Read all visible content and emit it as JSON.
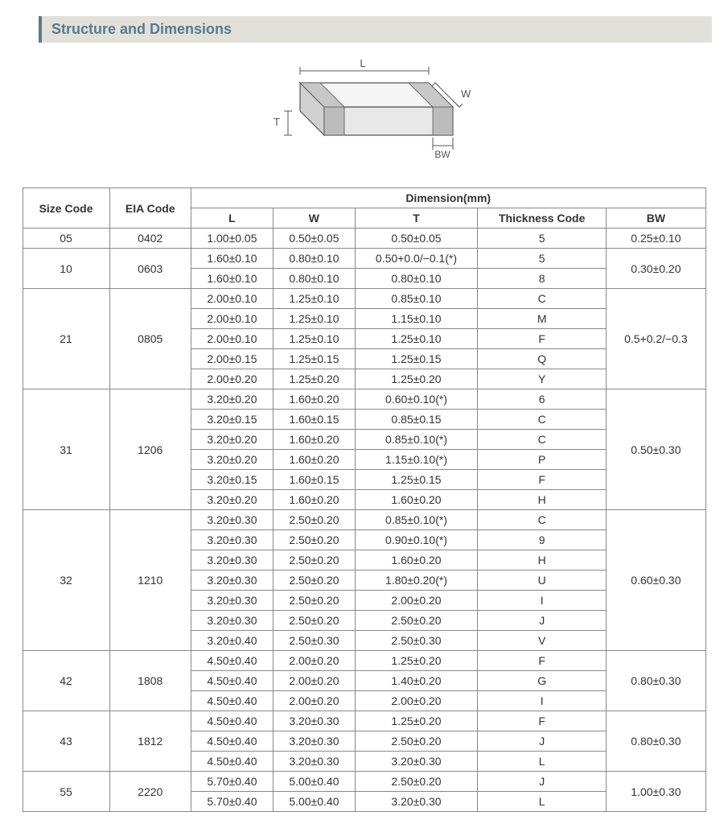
{
  "section_title": "Structure and Dimensions",
  "diagram": {
    "labels": {
      "L": "L",
      "W": "W",
      "T": "T",
      "BW": "BW"
    },
    "stroke": "#555555",
    "fill": "#e0e0e0",
    "text_color": "#555555"
  },
  "table": {
    "headers": {
      "size_code": "Size Code",
      "eia_code": "EIA Code",
      "dimension": "Dimension(mm)",
      "L": "L",
      "W": "W",
      "T": "T",
      "thickness_code": "Thickness  Code",
      "BW": "BW"
    },
    "groups": [
      {
        "size_code": "05",
        "eia_code": "0402",
        "bw": "0.25±0.10",
        "rows": [
          {
            "L": "1.00±0.05",
            "W": "0.50±0.05",
            "T": "0.50±0.05",
            "code": "5"
          }
        ]
      },
      {
        "size_code": "10",
        "eia_code": "0603",
        "bw": "0.30±0.20",
        "rows": [
          {
            "L": "1.60±0.10",
            "W": "0.80±0.10",
            "T": "0.50+0.0/−0.1(*)",
            "code": "5"
          },
          {
            "L": "1.60±0.10",
            "W": "0.80±0.10",
            "T": "0.80±0.10",
            "code": "8"
          }
        ]
      },
      {
        "size_code": "21",
        "eia_code": "0805",
        "bw": "0.5+0.2/−0.3",
        "rows": [
          {
            "L": "2.00±0.10",
            "W": "1.25±0.10",
            "T": "0.85±0.10",
            "code": "C"
          },
          {
            "L": "2.00±0.10",
            "W": "1.25±0.10",
            "T": "1.15±0.10",
            "code": "M"
          },
          {
            "L": "2.00±0.10",
            "W": "1.25±0.10",
            "T": "1.25±0.10",
            "code": "F"
          },
          {
            "L": "2.00±0.15",
            "W": "1.25±0.15",
            "T": "1.25±0.15",
            "code": "Q"
          },
          {
            "L": "2.00±0.20",
            "W": "1.25±0.20",
            "T": "1.25±0.20",
            "code": "Y"
          }
        ]
      },
      {
        "size_code": "31",
        "eia_code": "1206",
        "bw": "0.50±0.30",
        "rows": [
          {
            "L": "3.20±0.20",
            "W": "1.60±0.20",
            "T": "0.60±0.10(*)",
            "code": "6"
          },
          {
            "L": "3.20±0.15",
            "W": "1.60±0.15",
            "T": "0.85±0.15",
            "code": "C"
          },
          {
            "L": "3.20±0.20",
            "W": "1.60±0.20",
            "T": "0.85±0.10(*)",
            "code": "C"
          },
          {
            "L": "3.20±0.20",
            "W": "1.60±0.20",
            "T": "1.15±0.10(*)",
            "code": "P"
          },
          {
            "L": "3.20±0.15",
            "W": "1.60±0.15",
            "T": "1.25±0.15",
            "code": "F"
          },
          {
            "L": "3.20±0.20",
            "W": "1.60±0.20",
            "T": "1.60±0.20",
            "code": "H"
          }
        ]
      },
      {
        "size_code": "32",
        "eia_code": "1210",
        "bw": "0.60±0.30",
        "rows": [
          {
            "L": "3.20±0.30",
            "W": "2.50±0.20",
            "T": "0.85±0.10(*)",
            "code": "C"
          },
          {
            "L": "3.20±0.30",
            "W": "2.50±0.20",
            "T": "0.90±0.10(*)",
            "code": "9"
          },
          {
            "L": "3.20±0.30",
            "W": "2.50±0.20",
            "T": "1.60±0.20",
            "code": "H"
          },
          {
            "L": "3.20±0.30",
            "W": "2.50±0.20",
            "T": "1.80±0.20(*)",
            "code": "U"
          },
          {
            "L": "3.20±0.30",
            "W": "2.50±0.20",
            "T": "2.00±0.20",
            "code": "I"
          },
          {
            "L": "3.20±0.30",
            "W": "2.50±0.20",
            "T": "2.50±0.20",
            "code": "J"
          },
          {
            "L": "3.20±0.40",
            "W": "2.50±0.30",
            "T": "2.50±0.30",
            "code": "V"
          }
        ]
      },
      {
        "size_code": "42",
        "eia_code": "1808",
        "bw": "0.80±0.30",
        "rows": [
          {
            "L": "4.50±0.40",
            "W": "2.00±0.20",
            "T": "1.25±0.20",
            "code": "F"
          },
          {
            "L": "4.50±0.40",
            "W": "2.00±0.20",
            "T": "1.40±0.20",
            "code": "G"
          },
          {
            "L": "4.50±0.40",
            "W": "2.00±0.20",
            "T": "2.00±0.20",
            "code": "I"
          }
        ]
      },
      {
        "size_code": "43",
        "eia_code": "1812",
        "bw": "0.80±0.30",
        "rows": [
          {
            "L": "4.50±0.40",
            "W": "3.20±0.30",
            "T": "1.25±0.20",
            "code": "F"
          },
          {
            "L": "4.50±0.40",
            "W": "3.20±0.30",
            "T": "2.50±0.20",
            "code": "J"
          },
          {
            "L": "4.50±0.40",
            "W": "3.20±0.30",
            "T": "3.20±0.30",
            "code": "L"
          }
        ]
      },
      {
        "size_code": "55",
        "eia_code": "2220",
        "bw": "1.00±0.30",
        "rows": [
          {
            "L": "5.70±0.40",
            "W": "5.00±0.40",
            "T": "2.50±0.20",
            "code": "J"
          },
          {
            "L": "5.70±0.40",
            "W": "5.00±0.40",
            "T": "3.20±0.30",
            "code": "L"
          }
        ]
      }
    ]
  },
  "colors": {
    "header_bg": "#e2e0db",
    "header_border": "#5a7a8a",
    "header_text": "#5a7a8a",
    "table_border": "#888888",
    "body_text": "#333333"
  },
  "typography": {
    "header_fontsize": 18,
    "table_fontsize": 14,
    "font_family": "Arial, sans-serif"
  }
}
